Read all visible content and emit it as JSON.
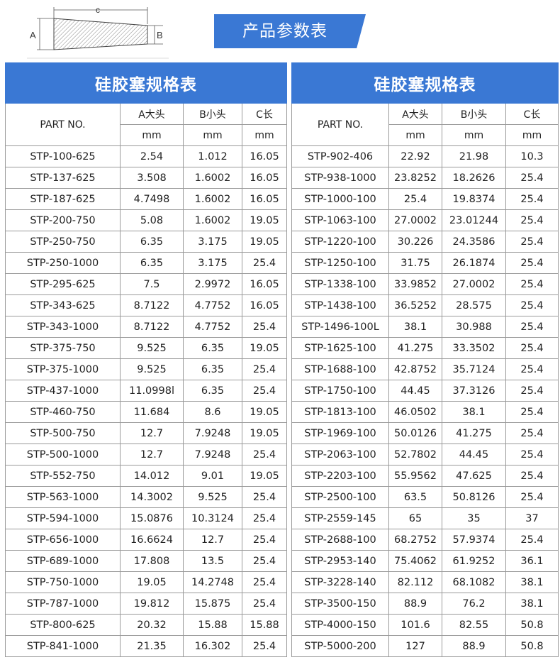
{
  "diagram": {
    "label_a": "A",
    "label_b": "B",
    "label_c": "c"
  },
  "header": {
    "title": "产品参数表"
  },
  "tables": {
    "left": {
      "title": "硅胶塞规格表",
      "headers": {
        "part": "PART NO.",
        "a": "A大头",
        "b": "B小头",
        "c": "C长",
        "unit_a": "mm",
        "unit_b": "mm",
        "unit_c": "mm"
      },
      "rows": [
        [
          "STP-100-625",
          "2.54",
          "1.012",
          "16.05"
        ],
        [
          "STP-137-625",
          "3.508",
          "1.6002",
          "16.05"
        ],
        [
          "STP-187-625",
          "4.7498",
          "1.6002",
          "16.05"
        ],
        [
          "STP-200-750",
          "5.08",
          "1.6002",
          "19.05"
        ],
        [
          "STP-250-750",
          "6.35",
          "3.175",
          "19.05"
        ],
        [
          "STP-250-1000",
          "6.35",
          "3.175",
          "25.4"
        ],
        [
          "STP-295-625",
          "7.5",
          "2.9972",
          "16.05"
        ],
        [
          "STP-343-625",
          "8.7122",
          "4.7752",
          "16.05"
        ],
        [
          "STP-343-1000",
          "8.7122",
          "4.7752",
          "25.4"
        ],
        [
          "STP-375-750",
          "9.525",
          "6.35",
          "19.05"
        ],
        [
          "STP-375-1000",
          "9.525",
          "6.35",
          "25.4"
        ],
        [
          "STP-437-1000",
          "11.0998l",
          "6.35",
          "25.4"
        ],
        [
          "STP-460-750",
          "11.684",
          "8.6",
          "19.05"
        ],
        [
          "STP-500-750",
          "12.7",
          "7.9248",
          "19.05"
        ],
        [
          "STP-500-1000",
          "12.7",
          "7.9248",
          "25.4"
        ],
        [
          "STP-552-750",
          "14.012",
          "9.01",
          "19.05"
        ],
        [
          "STP-563-1000",
          "14.3002",
          "9.525",
          "25.4"
        ],
        [
          "STP-594-1000",
          "15.0876",
          "10.3124",
          "25.4"
        ],
        [
          "STP-656-1000",
          "16.6624",
          "12.7",
          "25.4"
        ],
        [
          "STP-689-1000",
          "17.808",
          "13.5",
          "25.4"
        ],
        [
          "STP-750-1000",
          "19.05",
          "14.2748",
          "25.4"
        ],
        [
          "STP-787-1000",
          "19.812",
          "15.875",
          "25.4"
        ],
        [
          "STP-800-625",
          "20.32",
          "15.88",
          "15.88"
        ],
        [
          "STP-841-1000",
          "21.35",
          "16.302",
          "25.4"
        ]
      ]
    },
    "right": {
      "title": "硅胶塞规格表",
      "headers": {
        "part": "PART NO.",
        "a": "A大头",
        "b": "B小头",
        "c": "C长",
        "unit_a": "mm",
        "unit_b": "mm",
        "unit_c": "mm"
      },
      "rows": [
        [
          "STP-902-406",
          "22.92",
          "21.98",
          "10.3"
        ],
        [
          "STP-938-1000",
          "23.8252",
          "18.2626",
          "25.4"
        ],
        [
          "STP-1000-100",
          "25.4",
          "19.8374",
          "25.4"
        ],
        [
          "STP-1063-100",
          "27.0002",
          "23.01244",
          "25.4"
        ],
        [
          "STP-1220-100",
          "30.226",
          "24.3586",
          "25.4"
        ],
        [
          "STP-1250-100",
          "31.75",
          "26.1874",
          "25.4"
        ],
        [
          "STP-1338-100",
          "33.9852",
          "27.0002",
          "25.4"
        ],
        [
          "STP-1438-100",
          "36.5252",
          "28.575",
          "25.4"
        ],
        [
          "STP-1496-100L",
          "38.1",
          "30.988",
          "25.4"
        ],
        [
          "STP-1625-100",
          "41.275",
          "33.3502",
          "25.4"
        ],
        [
          "STP-1688-100",
          "42.8752",
          "35.7124",
          "25.4"
        ],
        [
          "STP-1750-100",
          "44.45",
          "37.3126",
          "25.4"
        ],
        [
          "STP-1813-100",
          "46.0502",
          "38.1",
          "25.4"
        ],
        [
          "STP-1969-100",
          "50.0126",
          "41.275",
          "25.4"
        ],
        [
          "STP-2063-100",
          "52.7802",
          "44.45",
          "25.4"
        ],
        [
          "STP-2203-100",
          "55.9562",
          "47.625",
          "25.4"
        ],
        [
          "STP-2500-100",
          "63.5",
          "50.8126",
          "25.4"
        ],
        [
          "STP-2559-145",
          "65",
          "35",
          "37"
        ],
        [
          "STP-2688-100",
          "68.2752",
          "57.9374",
          "25.4"
        ],
        [
          "STP-2953-140",
          "75.4062",
          "61.9252",
          "36.1"
        ],
        [
          "STP-3228-140",
          "82.112",
          "68.1082",
          "38.1"
        ],
        [
          "STP-3500-150",
          "88.9",
          "76.2",
          "38.1"
        ],
        [
          "STP-4000-150",
          "101.6",
          "82.55",
          "50.8"
        ],
        [
          "STP-5000-200",
          "127",
          "88.9",
          "50.8"
        ]
      ]
    }
  },
  "colors": {
    "accent": "#3a78d4",
    "border": "#9a9a9a"
  }
}
